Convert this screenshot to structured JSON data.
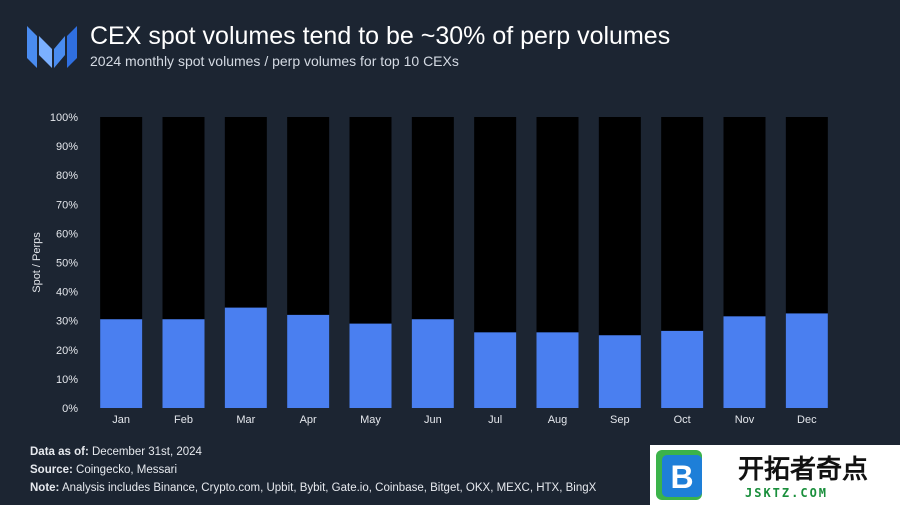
{
  "header": {
    "title": "CEX spot volumes tend to be ~30% of perp volumes",
    "subtitle": "2024 monthly spot volumes / perp volumes for top 10 CEXs"
  },
  "chart_data": {
    "type": "bar",
    "categories": [
      "Jan",
      "Feb",
      "Mar",
      "Apr",
      "May",
      "Jun",
      "Jul",
      "Aug",
      "Sep",
      "Oct",
      "Nov",
      "Dec"
    ],
    "series": [
      {
        "values": [
          30.5,
          30.5,
          34.5,
          32,
          29,
          30.5,
          26,
          26,
          25,
          26.5,
          31.5,
          32.5
        ]
      }
    ],
    "ylabel": "Spot / Perps",
    "ylim": [
      0,
      100
    ],
    "yticks": [
      "0%",
      "10%",
      "20%",
      "30%",
      "40%",
      "50%",
      "60%",
      "70%",
      "80%",
      "90%",
      "100%"
    ],
    "background_bar_value": 100,
    "colors": {
      "spot": "#4a7ff0",
      "background_bar": "#000000",
      "text": "#ffffff",
      "tick": "#e4e7ec"
    }
  },
  "footer": {
    "data_as_of_label": "Data as of:",
    "data_as_of_value": " December 31st, 2024",
    "source_label": "Source:",
    "source_value": " Coingecko, Messari",
    "note_label": "Note:",
    "note_value": " Analysis includes Binance, Crypto.com, Upbit, Bybit, Gate.io, Coinbase, Bitget, OKX, MEXC, HTX, BingX"
  },
  "watermark": {
    "letter": "B",
    "text_cn": "开拓者奇点",
    "text_en": "JSKTZ.COM"
  }
}
